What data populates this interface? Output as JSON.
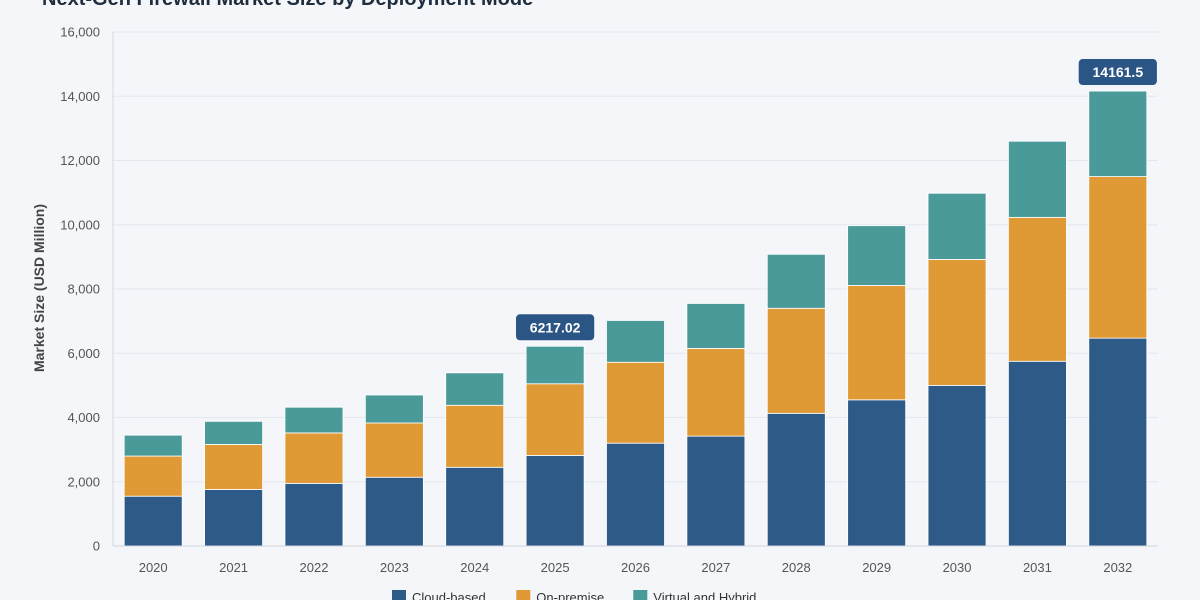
{
  "chart_data": {
    "type": "bar",
    "stacked": true,
    "title": "Next-Gen Firewall Market Size by Deployment Mode",
    "xlabel": "",
    "ylabel": "Market Size (USD Million)",
    "ylim": [
      0,
      16000
    ],
    "yticks": [
      0,
      2000,
      4000,
      6000,
      8000,
      10000,
      12000,
      14000,
      16000
    ],
    "ytick_labels": [
      "0",
      "2,000",
      "4,000",
      "6,000",
      "8,000",
      "10,000",
      "12,000",
      "14,000",
      "16,000"
    ],
    "grid": true,
    "legend_position": "bottom",
    "categories": [
      "2020",
      "2021",
      "2022",
      "2023",
      "2024",
      "2025",
      "2026",
      "2027",
      "2028",
      "2029",
      "2030",
      "2031",
      "2032"
    ],
    "series": [
      {
        "name": "Cloud-based",
        "color": "#2e5a87",
        "values": [
          1550,
          1760,
          1950,
          2140,
          2450,
          2820,
          3200,
          3420,
          4130,
          4550,
          5000,
          5750,
          6470
        ]
      },
      {
        "name": "On-premise",
        "color": "#e09a35",
        "values": [
          1250,
          1400,
          1570,
          1690,
          1930,
          2230,
          2520,
          2730,
          3270,
          3560,
          3920,
          4480,
          5030
        ]
      },
      {
        "name": "Virtual and Hybrid",
        "color": "#4a9a99",
        "values": [
          650,
          720,
          800,
          870,
          1010,
          1167.02,
          1300,
          1400,
          1680,
          1860,
          2060,
          2370,
          2661.5
        ]
      }
    ],
    "annotations": [
      {
        "category": "2025",
        "text": "6217.02",
        "value": 6217.02
      },
      {
        "category": "2032",
        "text": "14161.5",
        "value": 14161.5
      }
    ]
  }
}
